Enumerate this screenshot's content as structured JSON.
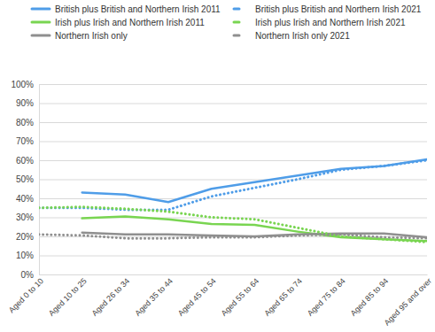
{
  "chart_data": {
    "type": "line",
    "categories": [
      "Aged 0 to 10",
      "Aged 10 to 25",
      "Aged 26 to 34",
      "Aged 35 to 44",
      "Aged 45 to 54",
      "Aged 55 to 64",
      "Aged 65 to 74",
      "Aged 75 to 84",
      "Aged 85 to 94",
      "Aged 95 and over"
    ],
    "series": [
      {
        "name": "British plus British and Northern Irish 2011",
        "color": "#4f9de8",
        "line_style": "solid",
        "values": [
          null,
          43,
          42,
          38,
          45,
          48.5,
          52,
          55.5,
          57,
          60.5
        ]
      },
      {
        "name": "Irish plus Irish and Northern Irish 2011",
        "color": "#79d551",
        "line_style": "solid",
        "values": [
          null,
          29.5,
          30.5,
          29,
          26.5,
          26,
          22.5,
          19.5,
          18.5,
          17.5
        ]
      },
      {
        "name": "Northern Irish only",
        "color": "#8f8f8f",
        "line_style": "solid",
        "values": [
          null,
          22,
          21,
          21,
          20.5,
          20,
          21,
          21.5,
          21.5,
          19.5
        ]
      },
      {
        "name": "British plus British and Northern Irish 2021",
        "color": "#4f9de8",
        "line_style": "dotted",
        "values": [
          35,
          35,
          34,
          34,
          41,
          45.5,
          50,
          55,
          57,
          60
        ]
      },
      {
        "name": "Irish plus Irish and Northern Irish 2021",
        "color": "#79d551",
        "line_style": "dotted",
        "values": [
          35,
          35.5,
          34.5,
          33,
          30,
          29,
          24.5,
          20,
          18.5,
          17
        ]
      },
      {
        "name": "Northern Irish only 2021",
        "color": "#8f8f8f",
        "line_style": "dotted",
        "values": [
          21,
          20.5,
          19,
          19,
          19.5,
          19.5,
          20.5,
          21,
          19.5,
          19
        ]
      }
    ],
    "ylim": [
      0,
      100
    ],
    "yticks": [
      {
        "value": 0,
        "label": "0%"
      },
      {
        "value": 10,
        "label": "10%"
      },
      {
        "value": 20,
        "label": "20%"
      },
      {
        "value": 30,
        "label": "30%"
      },
      {
        "value": 40,
        "label": "40%"
      },
      {
        "value": 50,
        "label": "50%"
      },
      {
        "value": 60,
        "label": "60%"
      },
      {
        "value": 70,
        "label": "70%"
      },
      {
        "value": 80,
        "label": "80%"
      },
      {
        "value": 90,
        "label": "90%"
      },
      {
        "value": 100,
        "label": "100%"
      }
    ],
    "grid": true,
    "legend": "top"
  }
}
